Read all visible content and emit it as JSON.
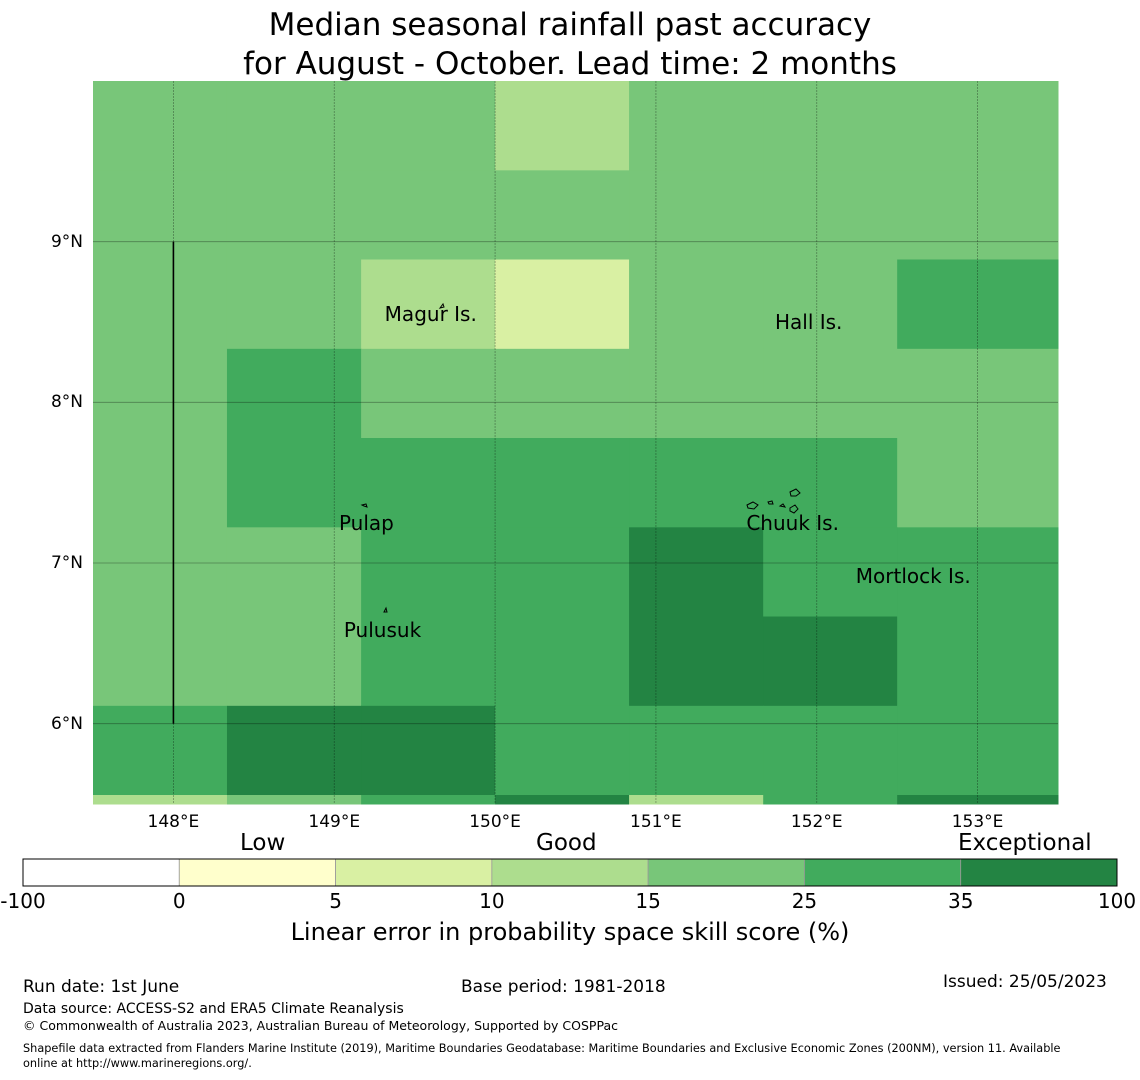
{
  "title": {
    "line1": "Median seasonal rainfall past accuracy",
    "line2": "for August - October. Lead time: 2 months"
  },
  "map": {
    "lon_range": [
      147.5,
      153.5
    ],
    "lat_range": [
      5.5,
      10.0
    ],
    "lon_ticks": [
      148,
      149,
      150,
      151,
      152,
      153
    ],
    "lat_ticks": [
      6,
      7,
      8,
      9
    ],
    "lon_tick_labels": [
      "148°E",
      "149°E",
      "150°E",
      "151°E",
      "152°E",
      "153°E"
    ],
    "lat_tick_labels": [
      "6°N",
      "7°N",
      "8°N",
      "9°N"
    ],
    "grid": true,
    "cell_lon_edges": [
      147.5,
      148.333,
      149.167,
      150.0,
      150.833,
      151.667,
      152.5,
      153.5
    ],
    "cell_lat_edges": [
      10.0,
      9.444,
      8.889,
      8.333,
      7.778,
      7.222,
      6.667,
      6.111,
      5.556,
      5.5
    ],
    "skill_class_rows": [
      [
        4,
        4,
        4,
        3,
        4,
        4,
        4
      ],
      [
        4,
        4,
        4,
        4,
        4,
        4,
        4
      ],
      [
        4,
        4,
        3,
        2,
        4,
        4,
        5
      ],
      [
        4,
        5,
        4,
        4,
        4,
        4,
        4
      ],
      [
        4,
        5,
        5,
        5,
        5,
        5,
        4
      ],
      [
        4,
        4,
        5,
        5,
        6,
        5,
        5
      ],
      [
        4,
        4,
        5,
        5,
        6,
        6,
        5
      ],
      [
        5,
        6,
        6,
        5,
        5,
        5,
        5
      ],
      [
        3,
        4,
        5,
        6,
        3,
        5,
        6
      ]
    ],
    "class_colors": [
      "#ffffff",
      "#ffffcc",
      "#d9f0a3",
      "#addd8e",
      "#78c679",
      "#41ab5d",
      "#238443"
    ],
    "places": [
      {
        "name": "Magur Is.",
        "lon": 149.6,
        "lat": 8.55
      },
      {
        "name": "Hall Is.",
        "lon": 151.95,
        "lat": 8.5
      },
      {
        "name": "Pulap",
        "lon": 149.2,
        "lat": 7.25
      },
      {
        "name": "Chuuk Is.",
        "lon": 151.85,
        "lat": 7.25
      },
      {
        "name": "Mortlock Is.",
        "lon": 152.6,
        "lat": 6.92
      },
      {
        "name": "Pulusuk",
        "lon": 149.3,
        "lat": 6.58
      }
    ],
    "boundary_line": {
      "lon": 148.0,
      "lat_from": 6.0,
      "lat_to": 9.0
    }
  },
  "colorbar": {
    "ticks": [
      "-100",
      "0",
      "5",
      "10",
      "15",
      "25",
      "35",
      "100"
    ],
    "colors": [
      "#ffffff",
      "#ffffcc",
      "#d9f0a3",
      "#addd8e",
      "#78c679",
      "#41ab5d",
      "#238443"
    ],
    "categories": [
      "Low",
      "Good",
      "Exceptional"
    ],
    "label": "Linear error in probability space skill score (%)"
  },
  "footer": {
    "run_date": "Run date: 1st June",
    "base_period": "Base period: 1981-2018",
    "issued": "Issued: 25/05/2023",
    "data_source": "Data source: ACCESS-S2 and ERA5 Climate Reanalysis",
    "copyright": "© Commonwealth of Australia 2023, Australian Bureau of Meteorology, Supported by COSPPac",
    "shapefile_line1": "Shapefile data extracted from Flanders Marine Institute (2019), Maritime Boundaries Geodatabase: Maritime Boundaries and Exclusive Economic Zones (200NM), version 11. Available",
    "shapefile_line2": "online at http://www.marineregions.org/."
  }
}
